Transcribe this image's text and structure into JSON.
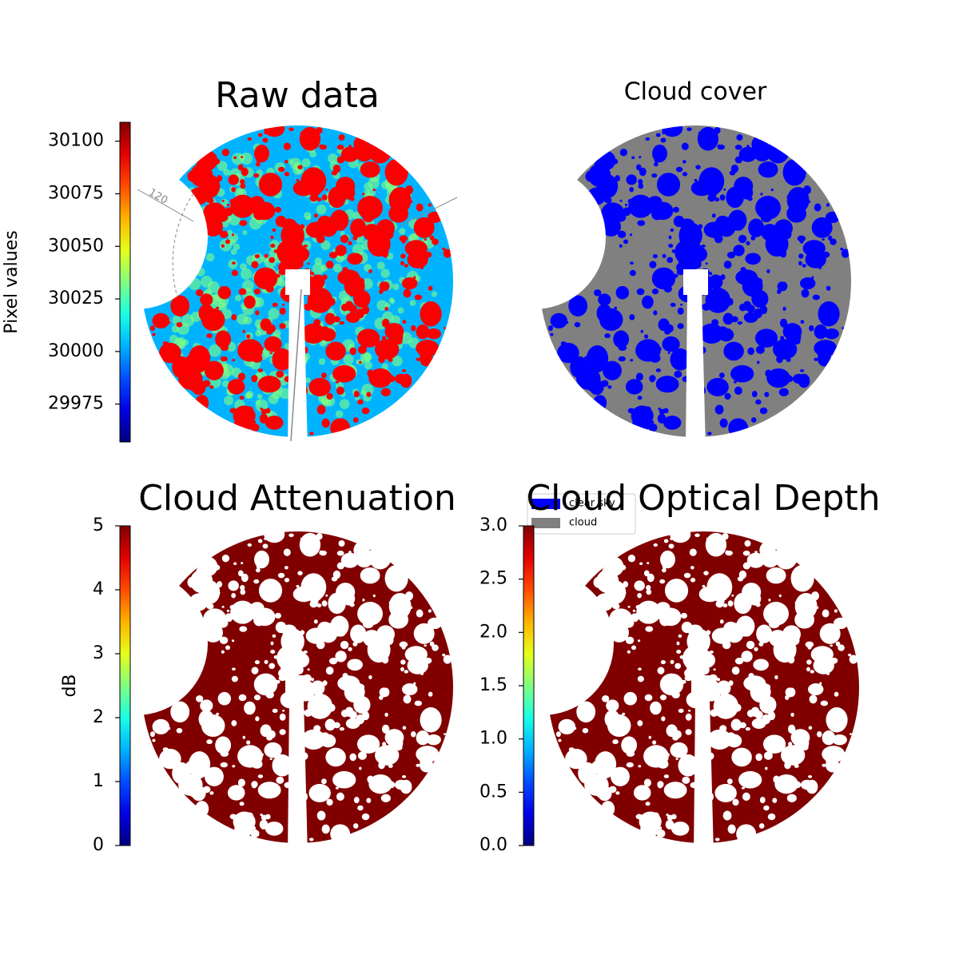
{
  "chart_data": [
    {
      "type": "image",
      "title": "Raw data",
      "colormap": "jet",
      "ylabel": "Pixel values",
      "ylim": [
        29957,
        30109
      ],
      "yticks": [
        29975,
        30000,
        30025,
        30050,
        30075,
        30100
      ],
      "annotation": "120"
    },
    {
      "type": "image",
      "title": "Cloud cover",
      "legend": [
        {
          "name": "clear sky",
          "color": "#0000ff"
        },
        {
          "name": "cloud",
          "color": "#808080"
        }
      ]
    },
    {
      "type": "image",
      "title": "Cloud Attenuation",
      "colormap": "jet",
      "ylabel": "dB",
      "ylim": [
        0,
        5
      ],
      "yticks": [
        0,
        1,
        2,
        3,
        4,
        5
      ]
    },
    {
      "type": "image",
      "title": "Cloud Optical Depth",
      "colormap": "jet",
      "ylim": [
        0,
        3
      ],
      "yticks": [
        {
          "value": 0,
          "label": "0.0"
        },
        0.5,
        {
          "value": 1,
          "label": "1.0"
        },
        1.5,
        {
          "value": 2,
          "label": "2.0"
        },
        2.5,
        {
          "value": 3,
          "label": "3.0"
        }
      ]
    }
  ]
}
